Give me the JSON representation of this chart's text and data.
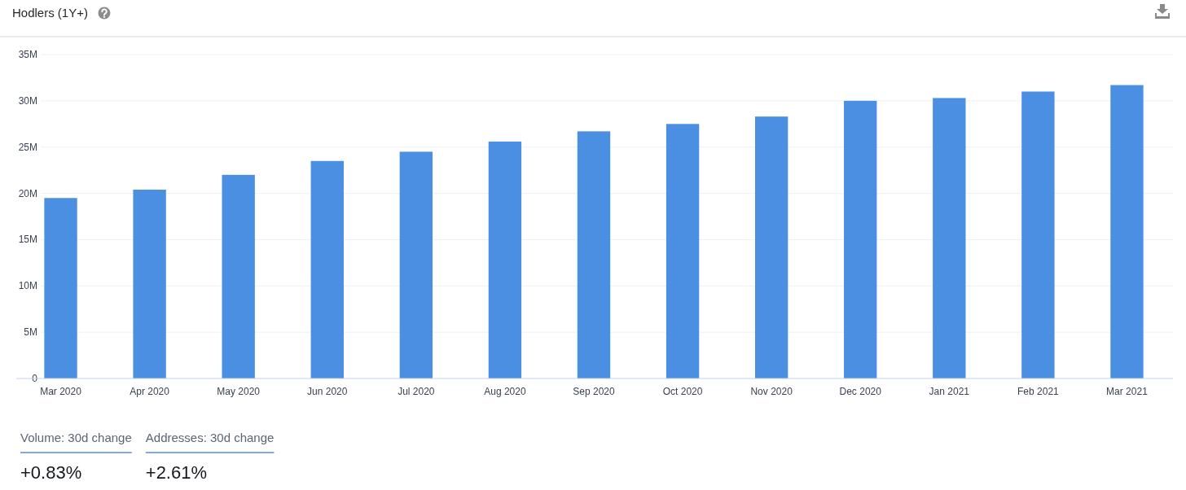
{
  "chart_data": [
    {
      "type": "bar",
      "title": "Hodlers (1Y+)",
      "categories": [
        "Mar 2020",
        "Apr 2020",
        "May 2020",
        "Jun 2020",
        "Jul 2020",
        "Aug 2020",
        "Sep 2020",
        "Oct 2020",
        "Nov 2020",
        "Dec 2020",
        "Jan 2021",
        "Feb 2021",
        "Mar 2021"
      ],
      "values": [
        19500000,
        20400000,
        22000000,
        23500000,
        24500000,
        25600000,
        26700000,
        27500000,
        28300000,
        30000000,
        30300000,
        31000000,
        31700000
      ],
      "color": "#4a8fe1",
      "ylim": [
        0,
        35000000
      ],
      "yticks": [
        0,
        {
          "value": 5000000,
          "label": "5M"
        },
        {
          "value": 10000000,
          "label": "10M"
        },
        {
          "value": 15000000,
          "label": "15M"
        },
        {
          "value": 20000000,
          "label": "20M"
        },
        {
          "value": 25000000,
          "label": "25M"
        },
        {
          "value": 30000000,
          "label": "30M"
        },
        {
          "value": 35000000,
          "label": "35M"
        }
      ],
      "grid": "y"
    },
    {
      "type": "other",
      "annotations": [
        "Volume: 30d change",
        "+0.83%",
        "Addresses: 30d change",
        "+2.61%"
      ]
    }
  ]
}
